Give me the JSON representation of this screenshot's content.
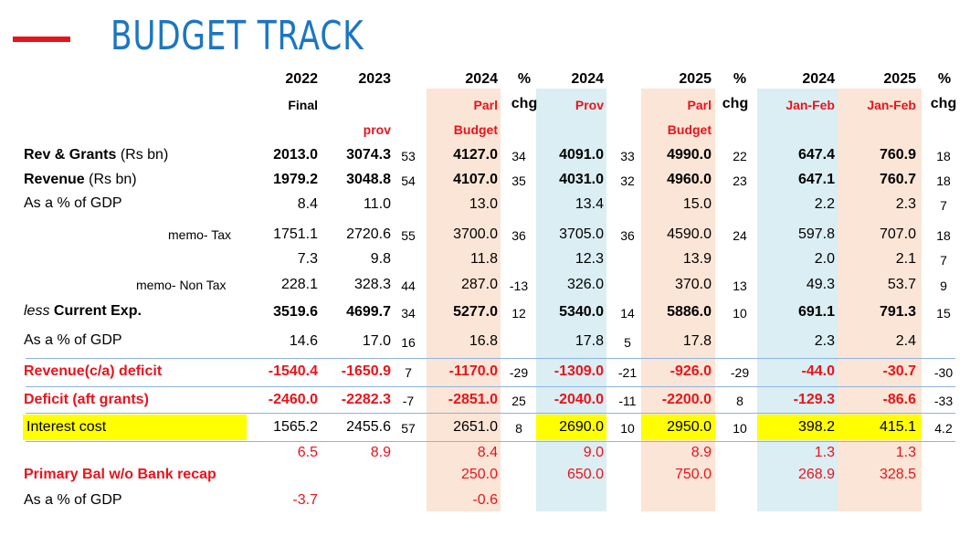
{
  "title": "BUDGET TRACK",
  "colors": {
    "accent": "#e8141c",
    "title": "#1b76c2",
    "peach": "#fbe5d6",
    "blue": "#daeef3",
    "highlight": "#ffff00",
    "rule": "#8db3e2"
  },
  "header": {
    "row1": [
      "2022",
      "2023",
      "2024",
      "%",
      "2024",
      "2025",
      "%",
      "2024",
      "2025",
      "%"
    ],
    "row2": [
      "Final",
      "Parl",
      "chg",
      "Prov",
      "Parl",
      "chg",
      "Jan-Feb",
      "Jan-Feb",
      "chg"
    ],
    "row3": [
      "prov",
      "Budget",
      "Budget"
    ]
  },
  "rows": [
    {
      "label": "Rev & Grants",
      "unit": " (Rs bn)",
      "cells": [
        "2013.0",
        "3074.3",
        "53",
        "4127.0",
        "34",
        "4091.0",
        "33",
        "4990.0",
        "22",
        "647.4",
        "760.9",
        "18"
      ]
    },
    {
      "label": "Revenue",
      "unit": " (Rs bn)",
      "cells": [
        "1979.2",
        "3048.8",
        "54",
        "4107.0",
        "35",
        "4031.0",
        "32",
        "4960.0",
        "23",
        "647.1",
        "760.7",
        "18"
      ]
    },
    {
      "label": "As a % of GDP",
      "cells": [
        "8.4",
        "11.0",
        "13.0",
        "13.4",
        "15.0",
        "2.2",
        "2.3",
        "7"
      ]
    },
    {
      "label": "memo- Tax",
      "cells": [
        "1751.1",
        "2720.6",
        "55",
        "3700.0",
        "36",
        "3705.0",
        "36",
        "4590.0",
        "24",
        "597.8",
        "707.0",
        "18"
      ]
    },
    {
      "cells": [
        "7.3",
        "9.8",
        "11.8",
        "12.3",
        "13.9",
        "2.0",
        "2.1",
        "7"
      ]
    },
    {
      "label": "memo- Non Tax",
      "cells": [
        "228.1",
        "328.3",
        "44",
        "287.0",
        "-13",
        "326.0",
        "370.0",
        "13",
        "49.3",
        "53.7",
        "9"
      ]
    },
    {
      "prefix": "less",
      "label": "Current Exp.",
      "cells": [
        "3519.6",
        "4699.7",
        "34",
        "5277.0",
        "12",
        "5340.0",
        "14",
        "5886.0",
        "10",
        "691.1",
        "791.3",
        "15"
      ]
    },
    {
      "label": "As a % of GDP",
      "cells": [
        "14.6",
        "17.0",
        "16",
        "16.8",
        "17.8",
        "5",
        "17.8",
        "2.3",
        "2.4"
      ]
    },
    {
      "label": "Revenue(c/a) deficit",
      "cells": [
        "-1540.4",
        "-1650.9",
        "7",
        "-1170.0",
        "-29",
        "-1309.0",
        "-21",
        "-926.0",
        "-29",
        "-44.0",
        "-30.7",
        "-30"
      ]
    },
    {
      "label": "Deficit (aft grants)",
      "cells": [
        "-2460.0",
        "-2282.3",
        "-7",
        "-2851.0",
        "25",
        "-2040.0",
        "-11",
        "-2200.0",
        "8",
        "-129.3",
        "-86.6",
        "-33"
      ]
    },
    {
      "label": "Interest cost",
      "cells": [
        "1565.2",
        "2455.6",
        "57",
        "2651.0",
        "8",
        "2690.0",
        "10",
        "2950.0",
        "10",
        "398.2",
        "415.1",
        "4.2"
      ]
    },
    {
      "cells": [
        "6.5",
        "8.9",
        "8.4",
        "9.0",
        "8.9",
        "1.3",
        "1.3"
      ]
    },
    {
      "label": "Primary Bal w/o Bank recap",
      "cells": [
        "250.0",
        "650.0",
        "750.0",
        "268.9",
        "328.5"
      ]
    },
    {
      "label": "As a % of GDP",
      "cells": [
        "-3.7",
        "-0.6"
      ]
    }
  ]
}
